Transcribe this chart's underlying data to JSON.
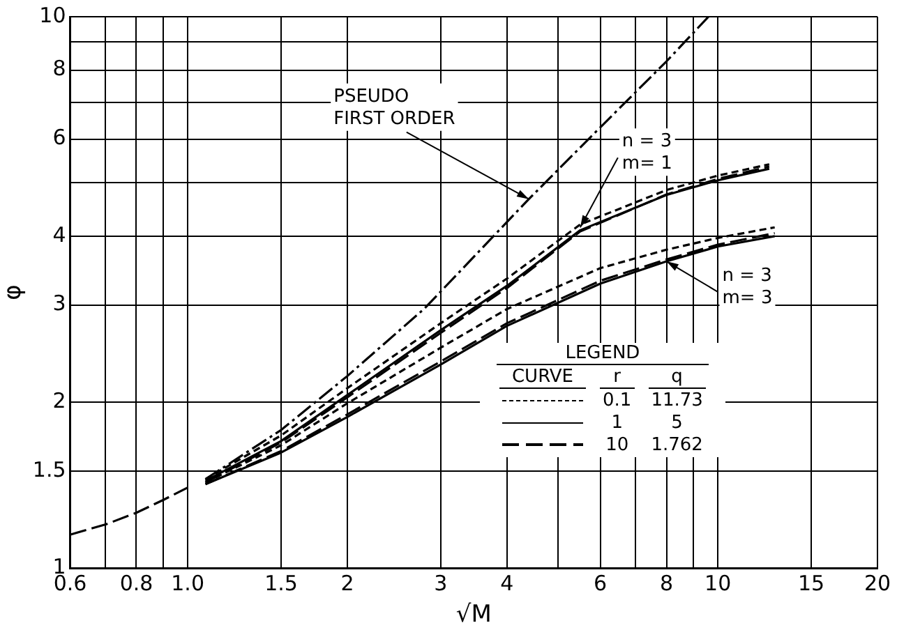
{
  "chart_data": {
    "type": "line",
    "xlabel": "√M",
    "ylabel": "φ",
    "log": "xy",
    "grid": true,
    "legend_title": "LEGEND",
    "xlim": [
      0.6,
      20
    ],
    "ylim": [
      1,
      10
    ],
    "xticks": [
      0.6,
      {
        "value": 0.7,
        "label": null
      },
      0.8,
      {
        "value": 0.9,
        "label": null
      },
      {
        "value": 1,
        "label": "1.0"
      },
      1.5,
      2,
      3,
      4,
      {
        "value": 5,
        "label": null
      },
      6,
      {
        "value": 7,
        "label": null
      },
      8,
      {
        "value": 9,
        "label": null
      },
      10,
      15,
      20
    ],
    "yticks": [
      1,
      1.5,
      2,
      3,
      4,
      {
        "value": 5,
        "label": null
      },
      6,
      {
        "value": 7,
        "label": null
      },
      8,
      {
        "value": 9,
        "label": null
      },
      10
    ],
    "series": [
      {
        "color": "#000000",
        "line_style": "longdash",
        "x": [
          0.6,
          0.7,
          0.8,
          0.9,
          1.0
        ],
        "values": [
          1.15,
          1.2,
          1.26,
          1.33,
          1.4
        ]
      },
      {
        "color": "#000000",
        "line_style": "dashdot",
        "x": [
          1.08,
          1.5,
          2,
          2.8,
          4.4,
          6,
          8,
          9.6
        ],
        "values": [
          1.45,
          1.78,
          2.23,
          2.96,
          4.67,
          6.3,
          8.3,
          10
        ]
      },
      {
        "color": "#000000",
        "line_style": "dashed",
        "x": [
          1.08,
          1.5,
          2,
          3,
          4,
          5.5,
          8,
          10,
          12.5
        ],
        "values": [
          1.45,
          1.74,
          2.12,
          2.78,
          3.35,
          4.2,
          4.85,
          5.15,
          5.4
        ]
      },
      {
        "color": "#000000",
        "line_style": "solid",
        "x": [
          1.08,
          1.5,
          2,
          3,
          4,
          5.5,
          8,
          10,
          12.5
        ],
        "values": [
          1.44,
          1.7,
          2.06,
          2.7,
          3.25,
          4.1,
          4.75,
          5.05,
          5.3
        ]
      },
      {
        "color": "#000000",
        "line_style": "longdash",
        "x": [
          1.08,
          1.5,
          2,
          3,
          4,
          5.5,
          8,
          10,
          12.5
        ],
        "values": [
          1.43,
          1.69,
          2.04,
          2.67,
          3.22,
          4.08,
          4.76,
          5.08,
          5.35
        ]
      },
      {
        "color": "#000000",
        "line_style": "dashed",
        "x": [
          1.08,
          1.5,
          2,
          3,
          4,
          6,
          8,
          10,
          12.8
        ],
        "values": [
          1.43,
          1.67,
          1.99,
          2.51,
          2.95,
          3.5,
          3.78,
          3.97,
          4.15
        ]
      },
      {
        "color": "#000000",
        "line_style": "solid",
        "x": [
          1.08,
          1.5,
          2,
          3,
          4,
          6,
          8,
          10,
          12.8
        ],
        "values": [
          1.42,
          1.62,
          1.88,
          2.34,
          2.75,
          3.28,
          3.6,
          3.83,
          4.0
        ]
      },
      {
        "color": "#000000",
        "line_style": "longdash",
        "x": [
          1.08,
          1.5,
          2,
          3,
          4,
          6,
          8,
          10,
          12.8
        ],
        "values": [
          1.42,
          1.63,
          1.9,
          2.37,
          2.78,
          3.32,
          3.63,
          3.86,
          4.05
        ]
      }
    ],
    "annotations": [
      {
        "text": "PSEUDO\nFIRST ORDER",
        "x": 4.4,
        "y": 4.67
      },
      {
        "text": "n = 3\nm= 1",
        "x": 5.5,
        "y": 4.15
      },
      {
        "text": "n = 3\nm= 3",
        "x": 8,
        "y": 3.6
      },
      "CURVE",
      "r",
      "q",
      "0.1",
      "11.73",
      "1",
      "5",
      "10",
      "1.762"
    ]
  }
}
